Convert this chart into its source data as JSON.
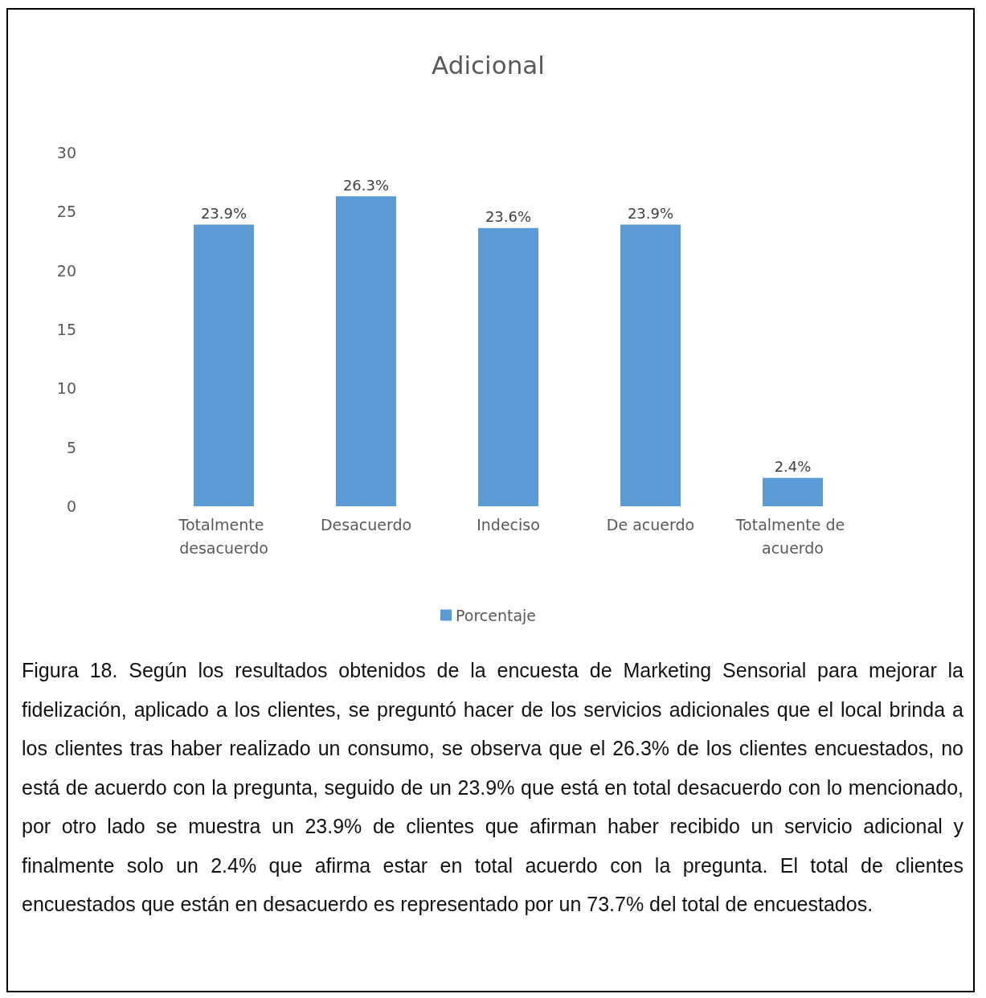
{
  "chart_data": {
    "type": "bar",
    "title": "Adicional",
    "categories": [
      "Totalmente desacuerdo",
      "Desacuerdo",
      "Indeciso",
      "De acuerdo",
      "Totalmente de acuerdo"
    ],
    "series": [
      {
        "name": "Porcentaje",
        "color": "#5b9bd5",
        "values": [
          23.9,
          26.3,
          23.6,
          23.9,
          2.4
        ],
        "value_labels": [
          "23.9%",
          "26.3%",
          "23.6%",
          "23.9%",
          "2.4%"
        ]
      }
    ],
    "ylim": [
      0,
      30
    ],
    "yticks": [
      0,
      5,
      10,
      15,
      20,
      25,
      30
    ],
    "grid": false,
    "legend": "bottom",
    "annotations": [
      "Figura 18. Según los resultados obtenidos de la encuesta de Marketing Sensorial para mejorar la fidelización, aplicado a los clientes, se preguntó hacer de los servicios adicionales que el local brinda a los clientes tras haber realizado un consumo, se observa que el 26.3% de los clientes encuestados, no está de acuerdo con la pregunta, seguido de un 23.9% que está en total desacuerdo con lo mencionado, por otro lado se muestra un 23.9% de clientes que afirman haber recibido un servicio adicional y finalmente solo un 2.4% que afirma estar en total acuerdo con la pregunta. El total de clientes encuestados que están en desacuerdo es representado por un 73.7% del total de encuestados."
    ]
  }
}
